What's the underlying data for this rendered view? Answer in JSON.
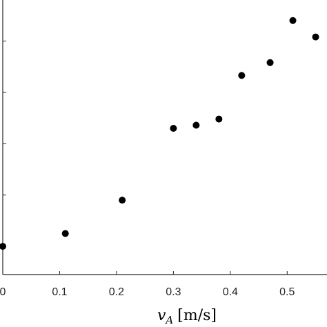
{
  "chart_data": {
    "type": "scatter",
    "title": "",
    "xlabel": "v_A [m/s]",
    "xlabel_parts": {
      "symbol": "v",
      "subscript": "A",
      "unit": "[m/s]"
    },
    "ylabel": "",
    "xlim": [
      0,
      0.57
    ],
    "ylim": [
      -0.55,
      4.8
    ],
    "x_ticks": [
      0,
      0.1,
      0.2,
      0.3,
      0.4,
      0.5
    ],
    "x_tick_labels": [
      "0",
      "0.1",
      "0.2",
      "0.3",
      "0.4",
      "0.5"
    ],
    "y_ticks": [
      0,
      1,
      2,
      3,
      4
    ],
    "y_tick_labels": [
      "",
      "",
      "",
      "",
      ""
    ],
    "grid": false,
    "marker_color": "#000000",
    "points": [
      {
        "x": 0.0,
        "y": 0.0
      },
      {
        "x": 0.11,
        "y": 0.25
      },
      {
        "x": 0.21,
        "y": 0.9
      },
      {
        "x": 0.3,
        "y": 2.3
      },
      {
        "x": 0.34,
        "y": 2.36
      },
      {
        "x": 0.38,
        "y": 2.48
      },
      {
        "x": 0.42,
        "y": 3.33
      },
      {
        "x": 0.47,
        "y": 3.58
      },
      {
        "x": 0.51,
        "y": 4.4
      },
      {
        "x": 0.55,
        "y": 4.08
      }
    ]
  }
}
